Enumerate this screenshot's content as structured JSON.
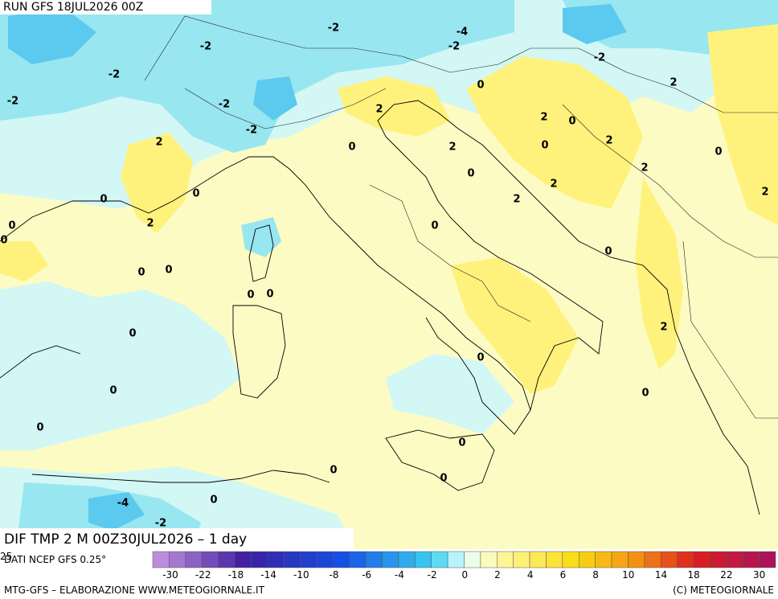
{
  "header": {
    "run": "RUN GFS 18JUL2026 00Z"
  },
  "title": "DIF TMP 2 M 00Z30JUL2026 – 1 day",
  "source": "DATI NCEP GFS 0.25°",
  "credit_left": "MTG-GFS – ELABORAZIONE WWW.METEOGIORNALE.IT",
  "credit_right": "(C) METEOGIORNALE",
  "axis_corner_label": "25",
  "colorbar": {
    "labels": [
      -30,
      -22,
      -18,
      -14,
      -10,
      -8,
      -6,
      -4,
      -2,
      0,
      2,
      4,
      6,
      8,
      10,
      14,
      18,
      22,
      30
    ]
  },
  "contour_labels": [
    -2,
    -4,
    -2,
    -2,
    -2,
    -2,
    -2,
    -2,
    -2,
    0,
    2,
    2,
    2,
    0,
    2,
    0,
    2,
    0,
    2,
    0,
    2,
    0,
    2,
    2,
    0,
    0,
    2,
    2,
    0,
    0,
    0,
    0,
    0,
    0,
    0,
    0,
    2,
    0,
    0,
    0,
    0,
    0,
    0,
    0,
    0,
    -4,
    0,
    -2
  ]
}
